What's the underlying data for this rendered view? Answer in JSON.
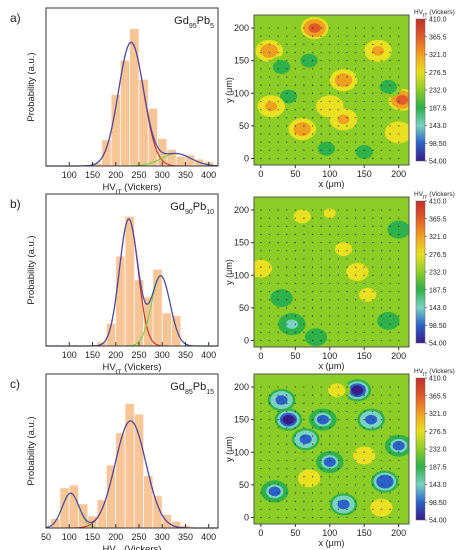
{
  "chart_data": [
    {
      "type": "bar",
      "panel_label": "a)",
      "alloy": {
        "base": "Gd",
        "base_sub": "95",
        "solute": "Pb",
        "solute_sub": "5"
      },
      "xlabel": "HV",
      "xlabel_sub": "IT",
      "xlabel_suffix": " (Vickers)",
      "ylabel": "Probability (a.u.)",
      "xlim": [
        50,
        420
      ],
      "xticks": [
        100,
        150,
        200,
        250,
        300,
        350,
        400
      ],
      "bin_width": 20,
      "bin_starts": [
        150,
        170,
        190,
        210,
        230,
        250,
        270,
        290,
        310,
        330,
        350,
        370,
        390
      ],
      "values": [
        0.02,
        0.19,
        0.52,
        0.77,
        1.0,
        0.63,
        0.42,
        0.2,
        0.12,
        0.07,
        0.08,
        0.05,
        0.03
      ],
      "fits": [
        {
          "color": "#cc2a2a",
          "amp": 0.9,
          "mean": 233,
          "sd": 27
        },
        {
          "color": "#7ccc3a",
          "amp": 0.09,
          "mean": 330,
          "sd": 32
        }
      ],
      "envelope_color": "#4a4aa8"
    },
    {
      "type": "bar",
      "panel_label": "b)",
      "alloy": {
        "base": "Gd",
        "base_sub": "90",
        "solute": "Pb",
        "solute_sub": "10"
      },
      "xlabel": "HV",
      "xlabel_sub": "IT",
      "xlabel_suffix": " (Vickers)",
      "ylabel": "Probability (a.u.)",
      "xlim": [
        50,
        420
      ],
      "xticks": [
        100,
        150,
        200,
        250,
        300,
        350,
        400
      ],
      "bin_width": 20,
      "bin_starts": [
        160,
        180,
        200,
        220,
        240,
        260,
        280,
        300,
        320
      ],
      "values": [
        0.03,
        0.17,
        0.68,
        0.98,
        0.5,
        0.37,
        0.58,
        0.25,
        0.23
      ],
      "fits": [
        {
          "color": "#cc2a2a",
          "amp": 0.96,
          "mean": 228,
          "sd": 20
        },
        {
          "color": "#7ccc3a",
          "amp": 0.53,
          "mean": 297,
          "sd": 20
        }
      ],
      "envelope_color": "#4a4aa8"
    },
    {
      "type": "bar",
      "panel_label": "c)",
      "alloy": {
        "base": "Gd",
        "base_sub": "85",
        "solute": "Pb",
        "solute_sub": "15"
      },
      "xlabel": "HV",
      "xlabel_sub": "IT",
      "xlabel_suffix": " (Vickers)",
      "ylabel": "Probability (a.u.)",
      "xlim": [
        50,
        420
      ],
      "xticks": [
        50,
        100,
        150,
        200,
        250,
        300,
        350,
        400
      ],
      "bin_width": 20,
      "bin_starts": [
        60,
        80,
        100,
        120,
        140,
        160,
        180,
        200,
        220,
        240,
        260,
        280,
        300,
        320,
        340
      ],
      "values": [
        0.07,
        0.3,
        0.32,
        0.18,
        0.09,
        0.21,
        0.47,
        0.71,
        0.93,
        0.85,
        0.39,
        0.24,
        0.1,
        0.05,
        0.02
      ],
      "fits": [
        {
          "color": "#cc2a2a",
          "amp": 0.8,
          "mean": 232,
          "sd": 33
        },
        {
          "color": "#7ccc3a",
          "amp": 0.26,
          "mean": 103,
          "sd": 18
        }
      ],
      "envelope_color": "#4a4aa8"
    },
    {
      "type": "heatmap",
      "title": "HV",
      "title_sub": "IT",
      "title_suffix": " (Vickers)",
      "xlabel": "x (μm)",
      "ylabel": "y (μm)",
      "xlim": [
        -10,
        215
      ],
      "ylim": [
        -10,
        220
      ],
      "xticks": [
        0,
        50,
        100,
        150,
        200
      ],
      "yticks": [
        0,
        50,
        100,
        150,
        200
      ],
      "colorbar_ticks": [
        "410.0",
        "365.5",
        "321.0",
        "276.5",
        "232.0",
        "187.5",
        "143.0",
        "98.50",
        "54.00"
      ],
      "colorbar_colors": [
        "#c2302a",
        "#e05a2a",
        "#f0a020",
        "#e8e020",
        "#8ccc26",
        "#2eb04a",
        "#7cd2c2",
        "#2c62c8",
        "#3a1c8a"
      ],
      "base_value": 250,
      "blobs": [
        [
          78,
          200,
          350
        ],
        [
          12,
          165,
          330
        ],
        [
          205,
          90,
          360
        ],
        [
          60,
          45,
          330
        ],
        [
          120,
          120,
          320
        ],
        [
          170,
          165,
          300
        ],
        [
          30,
          140,
          180
        ],
        [
          185,
          110,
          190
        ],
        [
          70,
          150,
          170
        ],
        [
          120,
          60,
          310
        ],
        [
          95,
          15,
          180
        ],
        [
          100,
          80,
          290
        ],
        [
          40,
          95,
          180
        ],
        [
          200,
          40,
          290
        ],
        [
          150,
          10,
          190
        ],
        [
          15,
          80,
          300
        ]
      ]
    },
    {
      "type": "heatmap",
      "title": "HV",
      "title_sub": "IT",
      "title_suffix": " (Vickers)",
      "xlabel": "x (μm)",
      "ylabel": "y (μm)",
      "xlim": [
        -10,
        215
      ],
      "ylim": [
        -10,
        220
      ],
      "xticks": [
        0,
        50,
        100,
        150,
        200
      ],
      "yticks": [
        0,
        50,
        100,
        150,
        200
      ],
      "colorbar_ticks": [
        "410.0",
        "365.5",
        "321.0",
        "276.5",
        "232.0",
        "187.5",
        "143.0",
        "98.50",
        "54.00"
      ],
      "colorbar_colors": [
        "#c2302a",
        "#e05a2a",
        "#f0a020",
        "#e8e020",
        "#8ccc26",
        "#2eb04a",
        "#7cd2c2",
        "#2c62c8",
        "#3a1c8a"
      ],
      "base_value": 225,
      "blobs": [
        [
          140,
          105,
          290
        ],
        [
          120,
          140,
          280
        ],
        [
          155,
          70,
          280
        ],
        [
          0,
          110,
          290
        ],
        [
          60,
          190,
          270
        ],
        [
          45,
          25,
          160
        ],
        [
          30,
          65,
          170
        ],
        [
          80,
          5,
          180
        ],
        [
          185,
          30,
          170
        ],
        [
          200,
          170,
          190
        ],
        [
          100,
          195,
          260
        ]
      ]
    },
    {
      "type": "heatmap",
      "title": "HV",
      "title_sub": "IT",
      "title_suffix": " (Vickers)",
      "xlabel": "x (μm)",
      "ylabel": "y (μm)",
      "xlim": [
        -10,
        215
      ],
      "ylim": [
        -10,
        220
      ],
      "xticks": [
        0,
        50,
        100,
        150,
        200
      ],
      "yticks": [
        0,
        50,
        100,
        150,
        200
      ],
      "colorbar_ticks": [
        "410.0",
        "365.5",
        "321.0",
        "276.5",
        "232.0",
        "187.5",
        "143.0",
        "98.50",
        "54.00"
      ],
      "colorbar_colors": [
        "#c2302a",
        "#e05a2a",
        "#f0a020",
        "#e8e020",
        "#8ccc26",
        "#2eb04a",
        "#7cd2c2",
        "#2c62c8",
        "#3a1c8a"
      ],
      "base_value": 230,
      "blobs": [
        [
          40,
          150,
          70
        ],
        [
          65,
          120,
          90
        ],
        [
          100,
          85,
          110
        ],
        [
          140,
          195,
          70
        ],
        [
          160,
          150,
          100
        ],
        [
          180,
          55,
          80
        ],
        [
          120,
          20,
          100
        ],
        [
          20,
          40,
          120
        ],
        [
          30,
          180,
          90
        ],
        [
          90,
          150,
          120
        ],
        [
          200,
          110,
          110
        ],
        [
          150,
          95,
          290
        ],
        [
          70,
          60,
          280
        ],
        [
          175,
          15,
          280
        ],
        [
          110,
          195,
          270
        ]
      ]
    }
  ]
}
